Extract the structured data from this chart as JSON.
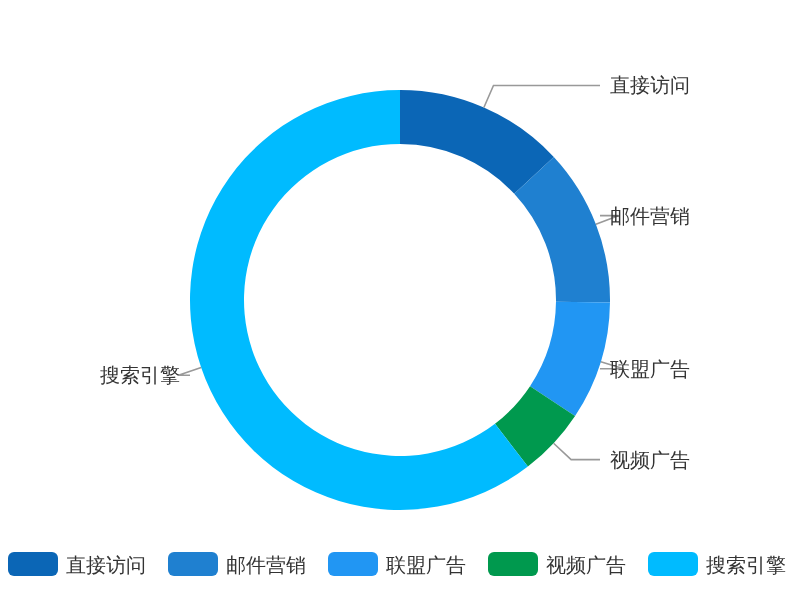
{
  "chart_data": {
    "type": "donut",
    "categories": [
      "直接访问",
      "邮件营销",
      "联盟广告",
      "视频广告",
      "搜索引擎"
    ],
    "values": [
      13.08,
      12.1,
      9.13,
      5.27,
      60.42
    ],
    "colors": [
      "#0b66b6",
      "#1f80d0",
      "#2196f3",
      "#00994e",
      "#00bbff"
    ],
    "legend": "bottom"
  }
}
